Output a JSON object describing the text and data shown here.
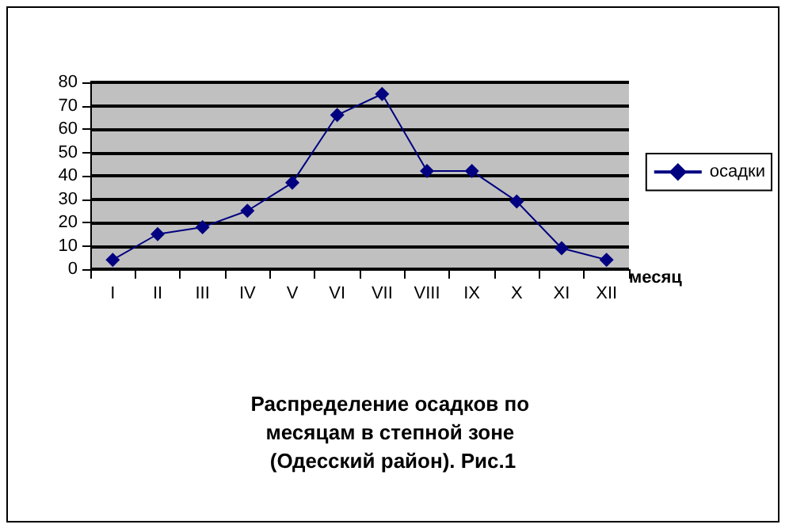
{
  "chart_data": {
    "type": "line",
    "title": "Распределение осадков по месяцам в степной зоне (Одесский район). Рис.1",
    "xlabel": "месяц",
    "categories": [
      "I",
      "II",
      "III",
      "IV",
      "V",
      "VI",
      "VII",
      "VIII",
      "IX",
      "X",
      "XI",
      "XII"
    ],
    "series": [
      {
        "name": "осадки",
        "color": "#000080",
        "values": [
          4,
          15,
          18,
          25,
          37,
          66,
          75,
          42,
          42,
          29,
          9,
          4
        ]
      }
    ],
    "ylim": [
      0,
      80
    ],
    "yticks": [
      0,
      10,
      20,
      30,
      40,
      50,
      60,
      70,
      80
    ],
    "grid": "y",
    "legend": "right",
    "marker": "diamond",
    "line_style": "solid"
  }
}
